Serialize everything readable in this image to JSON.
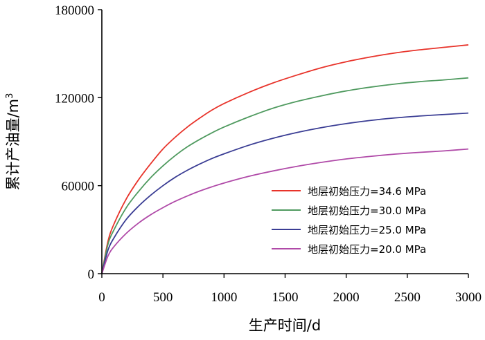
{
  "chart_data": {
    "type": "line",
    "title": "",
    "xlabel": "生产时间/d",
    "ylabel": "累计产油量/m",
    "ylabel_superscript": "3",
    "xlim": [
      0,
      3000
    ],
    "ylim": [
      0,
      180000
    ],
    "x_ticks": [
      0,
      500,
      1000,
      1500,
      2000,
      2500,
      3000
    ],
    "x_tick_labels": [
      "0",
      "500",
      "1000",
      "1500",
      "2000",
      "2500",
      "3000"
    ],
    "y_ticks": [
      0,
      60000,
      120000,
      180000
    ],
    "y_tick_labels": [
      "0",
      "60000",
      "120000",
      "180000"
    ],
    "grid": false,
    "legend_position": "bottom-right",
    "x": [
      0,
      50,
      100,
      200,
      300,
      400,
      500,
      600,
      700,
      800,
      900,
      1000,
      1200,
      1400,
      1600,
      1800,
      2000,
      2200,
      2400,
      2600,
      2800,
      3000
    ],
    "series": [
      {
        "name": "地层初始压力=34.6 MPa",
        "color": "#e8332a",
        "values": [
          0,
          22000,
          34000,
          51000,
          64000,
          75000,
          85000,
          93000,
          100000,
          106000,
          111500,
          116000,
          123500,
          130000,
          135500,
          140500,
          144500,
          147800,
          150500,
          152600,
          154300,
          156000
        ]
      },
      {
        "name": "地层初始压力=30.0 MPa",
        "color": "#4f9a5f",
        "values": [
          0,
          20000,
          30000,
          45000,
          56000,
          65500,
          73500,
          80500,
          86500,
          91500,
          96000,
          100000,
          106800,
          112800,
          117500,
          121300,
          124600,
          127200,
          129300,
          130900,
          132100,
          133500
        ]
      },
      {
        "name": "地层初始压力=25.0 MPa",
        "color": "#3a3d94",
        "values": [
          0,
          16000,
          24500,
          37000,
          46000,
          53500,
          60000,
          65700,
          70500,
          74700,
          78500,
          81700,
          87500,
          92300,
          96300,
          99600,
          102300,
          104500,
          106200,
          107500,
          108500,
          109500
        ]
      },
      {
        "name": "地层初始压力=20.0 MPa",
        "color": "#b04aa8",
        "values": [
          0,
          12000,
          18500,
          27500,
          34500,
          40200,
          45000,
          49300,
          53000,
          56300,
          59200,
          61800,
          66300,
          70000,
          73200,
          75900,
          78200,
          80000,
          81500,
          82700,
          83700,
          85000
        ]
      }
    ]
  }
}
